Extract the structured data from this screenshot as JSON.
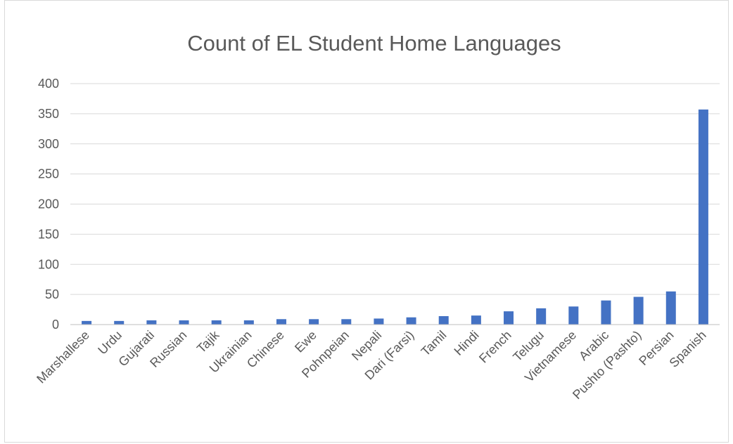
{
  "chart_data": {
    "type": "bar",
    "title": "Count of EL Student Home Languages",
    "xlabel": "",
    "ylabel": "",
    "categories": [
      "Marshallese",
      "Urdu",
      "Gujarati",
      "Russian",
      "Tajik",
      "Ukrainian",
      "Chinese",
      "Ewe",
      "Pohnpeian",
      "Nepali",
      "Dari (Farsi)",
      "Tamil",
      "Hindi",
      "French",
      "Telugu",
      "Vietnamese",
      "Arabic",
      "Pushto (Pashto)",
      "Persian",
      "Spanish"
    ],
    "values": [
      6,
      6,
      7,
      7,
      7,
      7,
      9,
      9,
      9,
      10,
      12,
      14,
      15,
      22,
      27,
      30,
      40,
      46,
      55,
      357
    ],
    "ylim": [
      0,
      400
    ],
    "yticks": [
      0,
      50,
      100,
      150,
      200,
      250,
      300,
      350,
      400
    ],
    "grid": true,
    "legend": "none",
    "bar_color": "#4472c4",
    "grid_color": "#d9d9d9",
    "text_color": "#595959"
  }
}
